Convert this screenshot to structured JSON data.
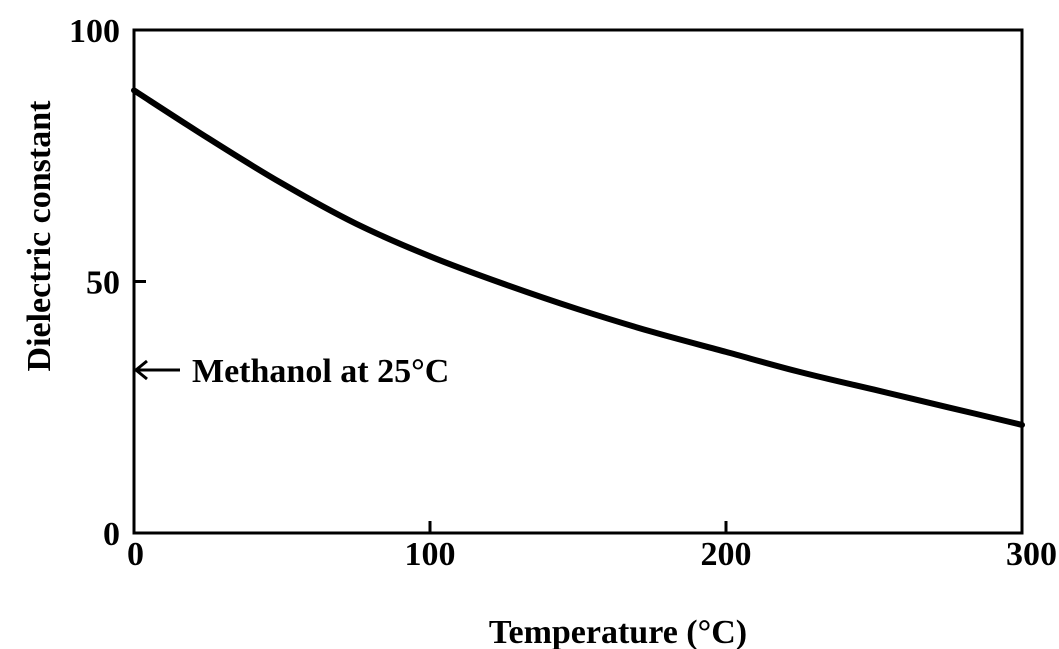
{
  "chart_data": {
    "type": "line",
    "title": "",
    "xlabel": "Temperature (°C)",
    "ylabel": "Dielectric constant",
    "xlim": [
      0,
      300
    ],
    "ylim": [
      0,
      100
    ],
    "xticks": [
      {
        "value": 0,
        "label": "0"
      },
      {
        "value": 100,
        "label": "100"
      },
      {
        "value": 200,
        "label": "200"
      },
      {
        "value": 300,
        "label": "300"
      }
    ],
    "yticks": [
      {
        "value": 0,
        "label": "0"
      },
      {
        "value": 50,
        "label": "50"
      },
      {
        "value": 100,
        "label": "100"
      }
    ],
    "grid": false,
    "series": [
      {
        "color": "#000000",
        "x": [
          0,
          25,
          50,
          75,
          100,
          125,
          150,
          175,
          200,
          225,
          250,
          275,
          300
        ],
        "y": [
          88,
          78.5,
          69.5,
          61.5,
          55,
          49.5,
          44.5,
          40,
          36,
          32,
          28.5,
          25,
          21.5
        ]
      }
    ],
    "annotations": [
      {
        "text": "Methanol at 25°C",
        "y": 33,
        "arrow": "left"
      }
    ]
  }
}
